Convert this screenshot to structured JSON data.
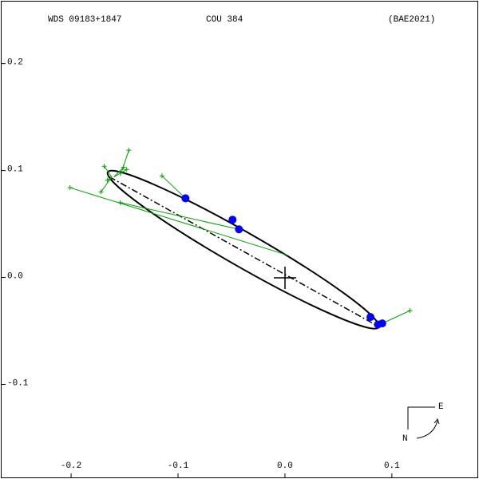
{
  "chart_data": {
    "type": "scatter",
    "header": [
      "WDS 09183+1847",
      "COU 384",
      "(BAE2021)"
    ],
    "xlim": [
      -0.265,
      0.18
    ],
    "ylim": [
      -0.187,
      0.258
    ],
    "xticks": [
      -0.2,
      -0.1,
      {
        "value": 0,
        "label": "0.0"
      },
      0.1
    ],
    "yticks": [
      0.2,
      0.1,
      {
        "value": 0,
        "label": "0.0"
      },
      -0.1
    ],
    "orbit": {
      "cx": -0.039,
      "cy": 0.026,
      "a": 0.146,
      "b": 0.016,
      "angle_deg": -29.8,
      "color": "#000000"
    },
    "node_line": {
      "x": [
        -0.164,
        0.086
      ],
      "y": [
        0.094,
        -0.045
      ],
      "color": "#000000"
    },
    "observations": {
      "color": "#0000ff",
      "x": [
        -0.093,
        -0.049,
        -0.043,
        0.08,
        0.087,
        0.091
      ],
      "y": [
        0.074,
        0.054,
        0.045,
        -0.037,
        -0.044,
        -0.043
      ]
    },
    "measures": {
      "color": "#00a000",
      "x": [
        -0.201,
        -0.169,
        -0.146,
        -0.148,
        -0.172,
        -0.166,
        -0.154,
        -0.115,
        0.117,
        -0.151
      ],
      "y": [
        0.084,
        0.104,
        0.119,
        0.101,
        0.08,
        0.091,
        0.07,
        0.095,
        -0.031,
        0.103
      ],
      "residual_x": [
        0.002,
        -0.162,
        -0.154,
        -0.16,
        -0.162,
        -0.162,
        -0.043,
        -0.093,
        0.091,
        -0.16
      ],
      "residual_y": [
        0.021,
        0.094,
        0.095,
        0.094,
        0.094,
        0.094,
        0.045,
        0.074,
        -0.043,
        0.094
      ]
    },
    "compass": {
      "east": "E",
      "north": "N"
    }
  }
}
